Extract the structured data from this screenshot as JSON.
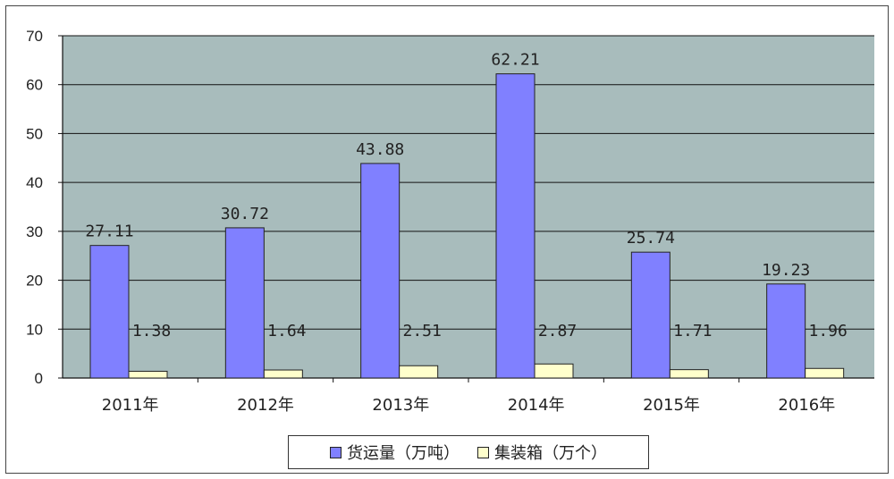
{
  "chart_data": {
    "type": "bar",
    "categories": [
      "2011年",
      "2012年",
      "2013年",
      "2014年",
      "2015年",
      "2016年"
    ],
    "series": [
      {
        "name": "货运量（万吨）",
        "values": [
          27.11,
          30.72,
          43.88,
          62.21,
          25.74,
          19.23
        ],
        "labels": [
          "27.11",
          "30.72",
          "43.88",
          "62.21",
          "25.74",
          "19.23"
        ],
        "color": "#8080ff"
      },
      {
        "name": "集装箱（万个）",
        "values": [
          1.38,
          1.64,
          2.51,
          2.87,
          1.71,
          1.96
        ],
        "labels": [
          "1.38",
          "1.64",
          "2.51",
          "2.87",
          "1.71",
          "1.96"
        ],
        "color": "#ffffcc"
      }
    ],
    "ylim": [
      0,
      70
    ],
    "yticks": [
      "0",
      "10",
      "20",
      "30",
      "40",
      "50",
      "60",
      "70"
    ],
    "grid": true,
    "plot_background": "#a8bcbc",
    "legend_position": "bottom"
  }
}
